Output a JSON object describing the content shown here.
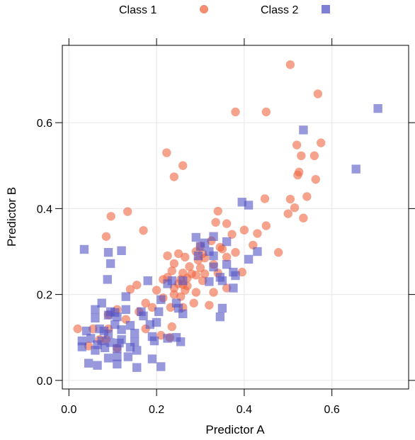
{
  "chart_data": {
    "type": "scatter",
    "xlabel": "Predictor A",
    "ylabel": "Predictor B",
    "xlim": [
      -0.015,
      0.775
    ],
    "ylim": [
      -0.02,
      0.78
    ],
    "x_ticks": [
      {
        "value": 0.0,
        "label": "0.0"
      },
      {
        "value": 0.2,
        "label": "0.2"
      },
      {
        "value": 0.4,
        "label": "0.4"
      },
      {
        "value": 0.6,
        "label": "0.6"
      }
    ],
    "y_ticks": [
      {
        "value": 0.0,
        "label": "0.0"
      },
      {
        "value": 0.2,
        "label": "0.2"
      },
      {
        "value": 0.4,
        "label": "0.4"
      },
      {
        "value": 0.6,
        "label": "0.6"
      }
    ],
    "grid": true,
    "legend_position": "top",
    "series": [
      {
        "name": "Class 1",
        "marker": "circle",
        "color": "#ef6540",
        "points": [
          [
            0.505,
            0.735
          ],
          [
            0.568,
            0.667
          ],
          [
            0.575,
            0.553
          ],
          [
            0.52,
            0.548
          ],
          [
            0.56,
            0.523
          ],
          [
            0.53,
            0.523
          ],
          [
            0.45,
            0.625
          ],
          [
            0.38,
            0.625
          ],
          [
            0.525,
            0.485
          ],
          [
            0.522,
            0.478
          ],
          [
            0.563,
            0.468
          ],
          [
            0.505,
            0.422
          ],
          [
            0.447,
            0.423
          ],
          [
            0.543,
            0.428
          ],
          [
            0.515,
            0.402
          ],
          [
            0.5,
            0.388
          ],
          [
            0.535,
            0.378
          ],
          [
            0.45,
            0.36
          ],
          [
            0.478,
            0.298
          ],
          [
            0.223,
            0.53
          ],
          [
            0.26,
            0.5
          ],
          [
            0.24,
            0.474
          ],
          [
            0.134,
            0.393
          ],
          [
            0.096,
            0.382
          ],
          [
            0.085,
            0.335
          ],
          [
            0.17,
            0.349
          ],
          [
            0.34,
            0.394
          ],
          [
            0.335,
            0.368
          ],
          [
            0.36,
            0.365
          ],
          [
            0.372,
            0.34
          ],
          [
            0.4,
            0.35
          ],
          [
            0.43,
            0.342
          ],
          [
            0.325,
            0.325
          ],
          [
            0.3,
            0.313
          ],
          [
            0.345,
            0.31
          ],
          [
            0.35,
            0.306
          ],
          [
            0.29,
            0.3
          ],
          [
            0.305,
            0.295
          ],
          [
            0.38,
            0.298
          ],
          [
            0.42,
            0.315
          ],
          [
            0.25,
            0.295
          ],
          [
            0.225,
            0.29
          ],
          [
            0.265,
            0.287
          ],
          [
            0.31,
            0.285
          ],
          [
            0.36,
            0.287
          ],
          [
            0.295,
            0.28
          ],
          [
            0.24,
            0.272
          ],
          [
            0.275,
            0.265
          ],
          [
            0.3,
            0.262
          ],
          [
            0.33,
            0.27
          ],
          [
            0.235,
            0.255
          ],
          [
            0.26,
            0.25
          ],
          [
            0.28,
            0.248
          ],
          [
            0.29,
            0.245
          ],
          [
            0.31,
            0.248
          ],
          [
            0.34,
            0.25
          ],
          [
            0.395,
            0.252
          ],
          [
            0.225,
            0.24
          ],
          [
            0.215,
            0.235
          ],
          [
            0.255,
            0.235
          ],
          [
            0.27,
            0.238
          ],
          [
            0.305,
            0.232
          ],
          [
            0.155,
            0.222
          ],
          [
            0.25,
            0.225
          ],
          [
            0.26,
            0.223
          ],
          [
            0.27,
            0.22
          ],
          [
            0.24,
            0.215
          ],
          [
            0.265,
            0.21
          ],
          [
            0.14,
            0.212
          ],
          [
            0.2,
            0.21
          ],
          [
            0.29,
            0.205
          ],
          [
            0.33,
            0.205
          ],
          [
            0.24,
            0.2
          ],
          [
            0.255,
            0.195
          ],
          [
            0.36,
            0.215
          ],
          [
            0.215,
            0.192
          ],
          [
            0.232,
            0.17
          ],
          [
            0.19,
            0.17
          ],
          [
            0.175,
            0.18
          ],
          [
            0.285,
            0.18
          ],
          [
            0.32,
            0.175
          ],
          [
            0.26,
            0.17
          ],
          [
            0.11,
            0.165
          ],
          [
            0.16,
            0.16
          ],
          [
            0.09,
            0.153
          ],
          [
            0.13,
            0.142
          ],
          [
            0.02,
            0.12
          ],
          [
            0.055,
            0.12
          ],
          [
            0.09,
            0.12
          ],
          [
            0.175,
            0.12
          ],
          [
            0.235,
            0.125
          ],
          [
            0.21,
            0.105
          ],
          [
            0.085,
            0.095
          ],
          [
            0.045,
            0.08
          ],
          [
            0.11,
            0.075
          ],
          [
            0.07,
            0.095
          ],
          [
            0.23,
            0.1
          ]
        ]
      },
      {
        "name": "Class 2",
        "marker": "square",
        "color": "#5454c4",
        "points": [
          [
            0.705,
            0.633
          ],
          [
            0.655,
            0.492
          ],
          [
            0.535,
            0.583
          ],
          [
            0.395,
            0.415
          ],
          [
            0.41,
            0.408
          ],
          [
            0.035,
            0.305
          ],
          [
            0.12,
            0.302
          ],
          [
            0.09,
            0.298
          ],
          [
            0.095,
            0.272
          ],
          [
            0.088,
            0.235
          ],
          [
            0.18,
            0.232
          ],
          [
            0.33,
            0.335
          ],
          [
            0.29,
            0.333
          ],
          [
            0.31,
            0.32
          ],
          [
            0.36,
            0.323
          ],
          [
            0.3,
            0.312
          ],
          [
            0.32,
            0.3
          ],
          [
            0.43,
            0.3
          ],
          [
            0.295,
            0.29
          ],
          [
            0.33,
            0.29
          ],
          [
            0.36,
            0.27
          ],
          [
            0.41,
            0.282
          ],
          [
            0.33,
            0.264
          ],
          [
            0.375,
            0.252
          ],
          [
            0.345,
            0.24
          ],
          [
            0.38,
            0.244
          ],
          [
            0.32,
            0.23
          ],
          [
            0.235,
            0.232
          ],
          [
            0.26,
            0.232
          ],
          [
            0.375,
            0.215
          ],
          [
            0.35,
            0.232
          ],
          [
            0.13,
            0.195
          ],
          [
            0.245,
            0.18
          ],
          [
            0.21,
            0.188
          ],
          [
            0.25,
            0.168
          ],
          [
            0.17,
            0.15
          ],
          [
            0.13,
            0.165
          ],
          [
            0.165,
            0.16
          ],
          [
            0.205,
            0.16
          ],
          [
            0.26,
            0.155
          ],
          [
            0.35,
            0.168
          ],
          [
            0.345,
            0.148
          ],
          [
            0.075,
            0.18
          ],
          [
            0.06,
            0.165
          ],
          [
            0.095,
            0.16
          ],
          [
            0.105,
            0.158
          ],
          [
            0.11,
            0.148
          ],
          [
            0.09,
            0.152
          ],
          [
            0.06,
            0.145
          ],
          [
            0.105,
            0.13
          ],
          [
            0.14,
            0.128
          ],
          [
            0.185,
            0.13
          ],
          [
            0.2,
            0.135
          ],
          [
            0.07,
            0.12
          ],
          [
            0.08,
            0.115
          ],
          [
            0.04,
            0.115
          ],
          [
            0.12,
            0.118
          ],
          [
            0.15,
            0.11
          ],
          [
            0.09,
            0.108
          ],
          [
            0.19,
            0.102
          ],
          [
            0.05,
            0.098
          ],
          [
            0.075,
            0.092
          ],
          [
            0.12,
            0.095
          ],
          [
            0.03,
            0.092
          ],
          [
            0.065,
            0.083
          ],
          [
            0.095,
            0.088
          ],
          [
            0.115,
            0.087
          ],
          [
            0.15,
            0.09
          ],
          [
            0.195,
            0.092
          ],
          [
            0.225,
            0.098
          ],
          [
            0.245,
            0.1
          ],
          [
            0.255,
            0.09
          ],
          [
            0.03,
            0.078
          ],
          [
            0.082,
            0.076
          ],
          [
            0.11,
            0.074
          ],
          [
            0.14,
            0.077
          ],
          [
            0.155,
            0.07
          ],
          [
            0.06,
            0.07
          ],
          [
            0.135,
            0.055
          ],
          [
            0.11,
            0.055
          ],
          [
            0.09,
            0.052
          ],
          [
            0.045,
            0.04
          ],
          [
            0.065,
            0.035
          ],
          [
            0.11,
            0.038
          ],
          [
            0.155,
            0.03
          ],
          [
            0.19,
            0.05
          ],
          [
            0.21,
            0.032
          ],
          [
            0.225,
            0.225
          ]
        ]
      }
    ]
  }
}
